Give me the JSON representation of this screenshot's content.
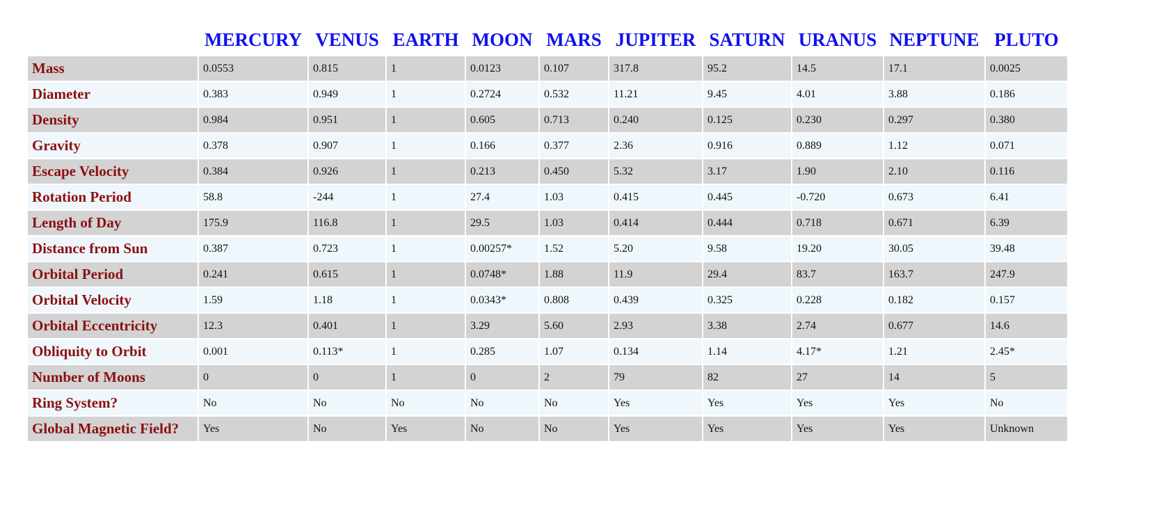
{
  "planets": [
    "MERCURY",
    "VENUS",
    "EARTH",
    "MOON",
    "MARS",
    "JUPITER",
    "SATURN",
    "URANUS",
    "NEPTUNE",
    "PLUTO"
  ],
  "rows": [
    {
      "label": "Mass",
      "values": [
        "0.0553",
        "0.815",
        "1",
        "0.0123",
        "0.107",
        "317.8",
        "95.2",
        "14.5",
        "17.1",
        "0.0025"
      ]
    },
    {
      "label": "Diameter",
      "values": [
        "0.383",
        "0.949",
        "1",
        "0.2724",
        "0.532",
        "11.21",
        "9.45",
        "4.01",
        "3.88",
        "0.186"
      ]
    },
    {
      "label": "Density",
      "values": [
        "0.984",
        "0.951",
        "1",
        "0.605",
        "0.713",
        "0.240",
        "0.125",
        "0.230",
        "0.297",
        "0.380"
      ]
    },
    {
      "label": "Gravity",
      "values": [
        "0.378",
        "0.907",
        "1",
        "0.166",
        "0.377",
        "2.36",
        "0.916",
        "0.889",
        "1.12",
        "0.071"
      ]
    },
    {
      "label": "Escape Velocity",
      "values": [
        "0.384",
        "0.926",
        "1",
        "0.213",
        "0.450",
        "5.32",
        "3.17",
        "1.90",
        "2.10",
        "0.116"
      ]
    },
    {
      "label": "Rotation Period",
      "values": [
        "58.8",
        "-244",
        "1",
        "27.4",
        "1.03",
        "0.415",
        "0.445",
        "-0.720",
        "0.673",
        "6.41"
      ]
    },
    {
      "label": "Length of Day",
      "values": [
        "175.9",
        "116.8",
        "1",
        "29.5",
        "1.03",
        "0.414",
        "0.444",
        "0.718",
        "0.671",
        "6.39"
      ]
    },
    {
      "label": "Distance from Sun",
      "values": [
        "0.387",
        "0.723",
        "1",
        "0.00257*",
        "1.52",
        "5.20",
        "9.58",
        "19.20",
        "30.05",
        "39.48"
      ]
    },
    {
      "label": "Orbital Period",
      "values": [
        "0.241",
        "0.615",
        "1",
        "0.0748*",
        "1.88",
        "11.9",
        "29.4",
        "83.7",
        "163.7",
        "247.9"
      ]
    },
    {
      "label": "Orbital Velocity",
      "values": [
        "1.59",
        "1.18",
        "1",
        "0.0343*",
        "0.808",
        "0.439",
        "0.325",
        "0.228",
        "0.182",
        "0.157"
      ]
    },
    {
      "label": "Orbital Eccentricity",
      "values": [
        "12.3",
        "0.401",
        "1",
        "3.29",
        "5.60",
        "2.93",
        "3.38",
        "2.74",
        "0.677",
        "14.6"
      ]
    },
    {
      "label": "Obliquity to Orbit",
      "values": [
        "0.001",
        "0.113*",
        "1",
        "0.285",
        "1.07",
        "0.134",
        "1.14",
        "4.17*",
        "1.21",
        "2.45*"
      ]
    },
    {
      "label": "Number of Moons",
      "values": [
        "0",
        "0",
        "1",
        "0",
        "2",
        "79",
        "82",
        "27",
        "14",
        "5"
      ]
    },
    {
      "label": "Ring System?",
      "values": [
        "No",
        "No",
        "No",
        "No",
        "No",
        "Yes",
        "Yes",
        "Yes",
        "Yes",
        "No"
      ]
    },
    {
      "label": "Global Magnetic Field?",
      "values": [
        "Yes",
        "No",
        "Yes",
        "No",
        "No",
        "Yes",
        "Yes",
        "Yes",
        "Yes",
        "Unknown"
      ]
    }
  ],
  "colors": {
    "header_text": "#1111ee",
    "label_text": "#8b1010",
    "row_gray": "#d3d3d3",
    "row_light": "#eff7fc"
  }
}
